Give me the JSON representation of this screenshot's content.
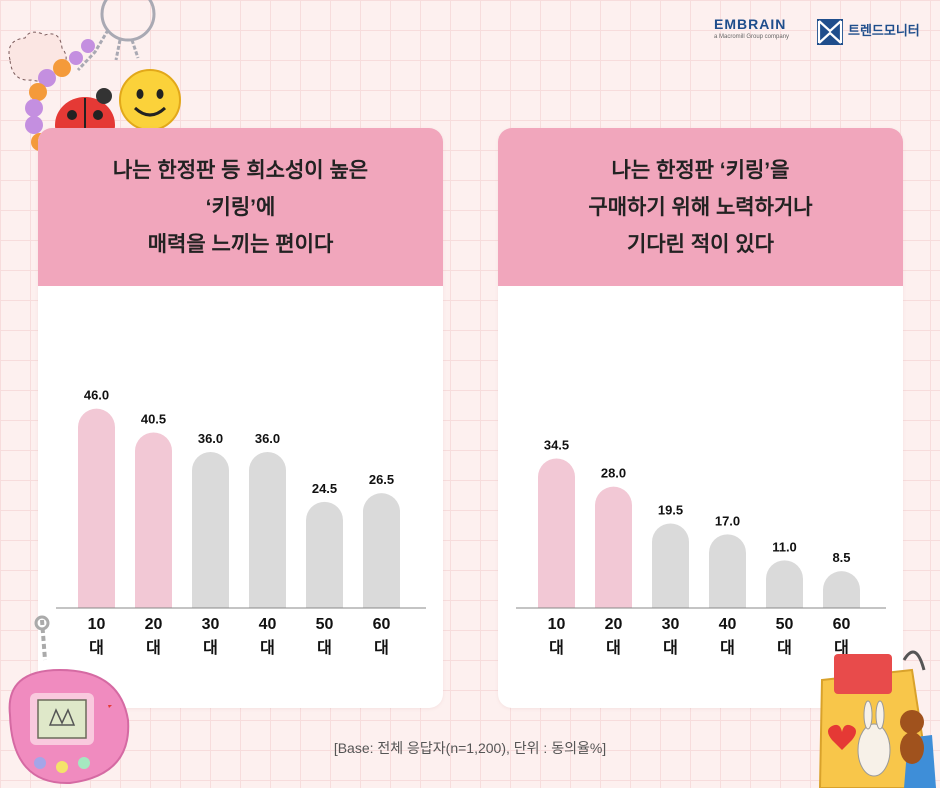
{
  "logos": {
    "embrain": "EMBRAIN",
    "embrain_sub": "a Macromill Group company",
    "trendmonitor": "트렌드모니터"
  },
  "colors": {
    "highlight_bar": "#f2c8d5",
    "normal_bar": "#dadada",
    "header_bg": "#f1a6bc",
    "axis": "#888888",
    "label": "#111111"
  },
  "chart_data": [
    {
      "type": "bar",
      "title": "나는 한정판 등 희소성이 높은\n‘키링’에\n매력을 느끼는 편이다",
      "categories": [
        "10\n대",
        "20\n대",
        "30\n대",
        "40\n대",
        "50\n대",
        "60\n대"
      ],
      "values": [
        46.0,
        40.5,
        36.0,
        36.0,
        24.5,
        26.5
      ],
      "value_labels": [
        "46.0",
        "40.5",
        "36.0",
        "36.0",
        "24.5",
        "26.5"
      ],
      "highlight": [
        true,
        true,
        false,
        false,
        false,
        false
      ],
      "ylim": [
        0,
        60
      ],
      "xlabel": "",
      "ylabel": ""
    },
    {
      "type": "bar",
      "title": "나는 한정판 ‘키링’을\n구매하기 위해 노력하거나\n기다린 적이 있다",
      "categories": [
        "10\n대",
        "20\n대",
        "30\n대",
        "40\n대",
        "50\n대",
        "60\n대"
      ],
      "values": [
        34.5,
        28.0,
        19.5,
        17.0,
        11.0,
        8.5
      ],
      "value_labels": [
        "34.5",
        "28.0",
        "19.5",
        "17.0",
        "11.0",
        "8.5"
      ],
      "highlight": [
        true,
        true,
        false,
        false,
        false,
        false
      ],
      "ylim": [
        0,
        60
      ],
      "xlabel": "",
      "ylabel": ""
    }
  ],
  "footnote": "[Base: 전체 응답자(n=1,200), 단위 : 동의율%]"
}
